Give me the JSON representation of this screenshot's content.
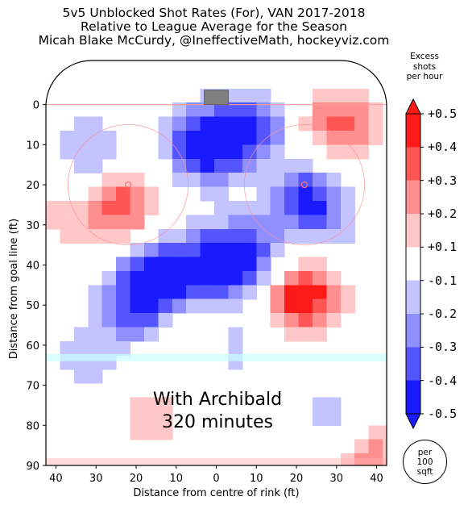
{
  "title_lines": [
    "5v5 Unblocked Shot Rates (For), VAN 2017-2018",
    "Relative to League Average for the Season",
    "Micah Blake McCurdy, @IneffectiveMath, hockeyviz.com"
  ],
  "overlay": {
    "line1": "With Archibald",
    "line2": "320 minutes"
  },
  "colorbar": {
    "title_lines": [
      "Excess",
      "shots",
      "per hour"
    ],
    "ticks": [
      "+0.5",
      "+0.4",
      "+0.3",
      "+0.2",
      "+0.1",
      "-0.1",
      "-0.2",
      "-0.3",
      "-0.4",
      "-0.5"
    ],
    "tick_values": [
      0.5,
      0.4,
      0.3,
      0.2,
      0.1,
      -0.1,
      -0.2,
      -0.3,
      -0.4,
      -0.5
    ],
    "colors": [
      "#ff1a1a",
      "#ff5555",
      "#ff8f8f",
      "#ffc7c7",
      "#ffffff",
      "#c3c3ff",
      "#8f8fff",
      "#5555ff",
      "#1a1aff"
    ]
  },
  "unit_badge": [
    "per",
    "100",
    "sqft"
  ],
  "chart_data": {
    "type": "heatmap",
    "xlabel": "Distance from centre of rink (ft)",
    "ylabel": "Distance from goal line (ft)",
    "x_ticks": [
      {
        "pos": -40,
        "label": "40"
      },
      {
        "pos": -30,
        "label": "30"
      },
      {
        "pos": -20,
        "label": "20"
      },
      {
        "pos": -10,
        "label": "10"
      },
      {
        "pos": 0,
        "label": "0"
      },
      {
        "pos": 10,
        "label": "10"
      },
      {
        "pos": 20,
        "label": "20"
      },
      {
        "pos": 30,
        "label": "30"
      },
      {
        "pos": 40,
        "label": "40"
      }
    ],
    "y_ticks": [
      0,
      10,
      20,
      30,
      40,
      50,
      60,
      70,
      80,
      90
    ],
    "xlim": [
      -42.5,
      42.5
    ],
    "ylim": [
      -11,
      90
    ],
    "hotspots": [
      {
        "x": -3,
        "y": 10,
        "value": -0.5
      },
      {
        "x": 8,
        "y": 6,
        "value": -0.4
      },
      {
        "x": 23,
        "y": 24,
        "value": -0.45
      },
      {
        "x": -14,
        "y": 42,
        "value": -0.45
      },
      {
        "x": 0,
        "y": 40,
        "value": -0.4
      },
      {
        "x": -20,
        "y": 50,
        "value": -0.35
      },
      {
        "x": 8,
        "y": 37,
        "value": -0.3
      },
      {
        "x": -32,
        "y": 12,
        "value": -0.2
      },
      {
        "x": 35,
        "y": 34,
        "value": -0.15
      },
      {
        "x": 3,
        "y": 60,
        "value": -0.15
      },
      {
        "x": -33,
        "y": 63,
        "value": -0.15
      },
      {
        "x": 28,
        "y": 78,
        "value": -0.15
      },
      {
        "x": 22,
        "y": 48,
        "value": 0.5
      },
      {
        "x": -23,
        "y": 25,
        "value": 0.35
      },
      {
        "x": 31,
        "y": 5,
        "value": 0.35
      },
      {
        "x": 39,
        "y": 88,
        "value": 0.25
      },
      {
        "x": -16,
        "y": 78,
        "value": 0.15
      },
      {
        "x": -6,
        "y": 57,
        "value": 0.12
      },
      {
        "x": -38,
        "y": 28,
        "value": 0.12
      },
      {
        "x": 40,
        "y": 32,
        "value": 0.12
      }
    ]
  }
}
